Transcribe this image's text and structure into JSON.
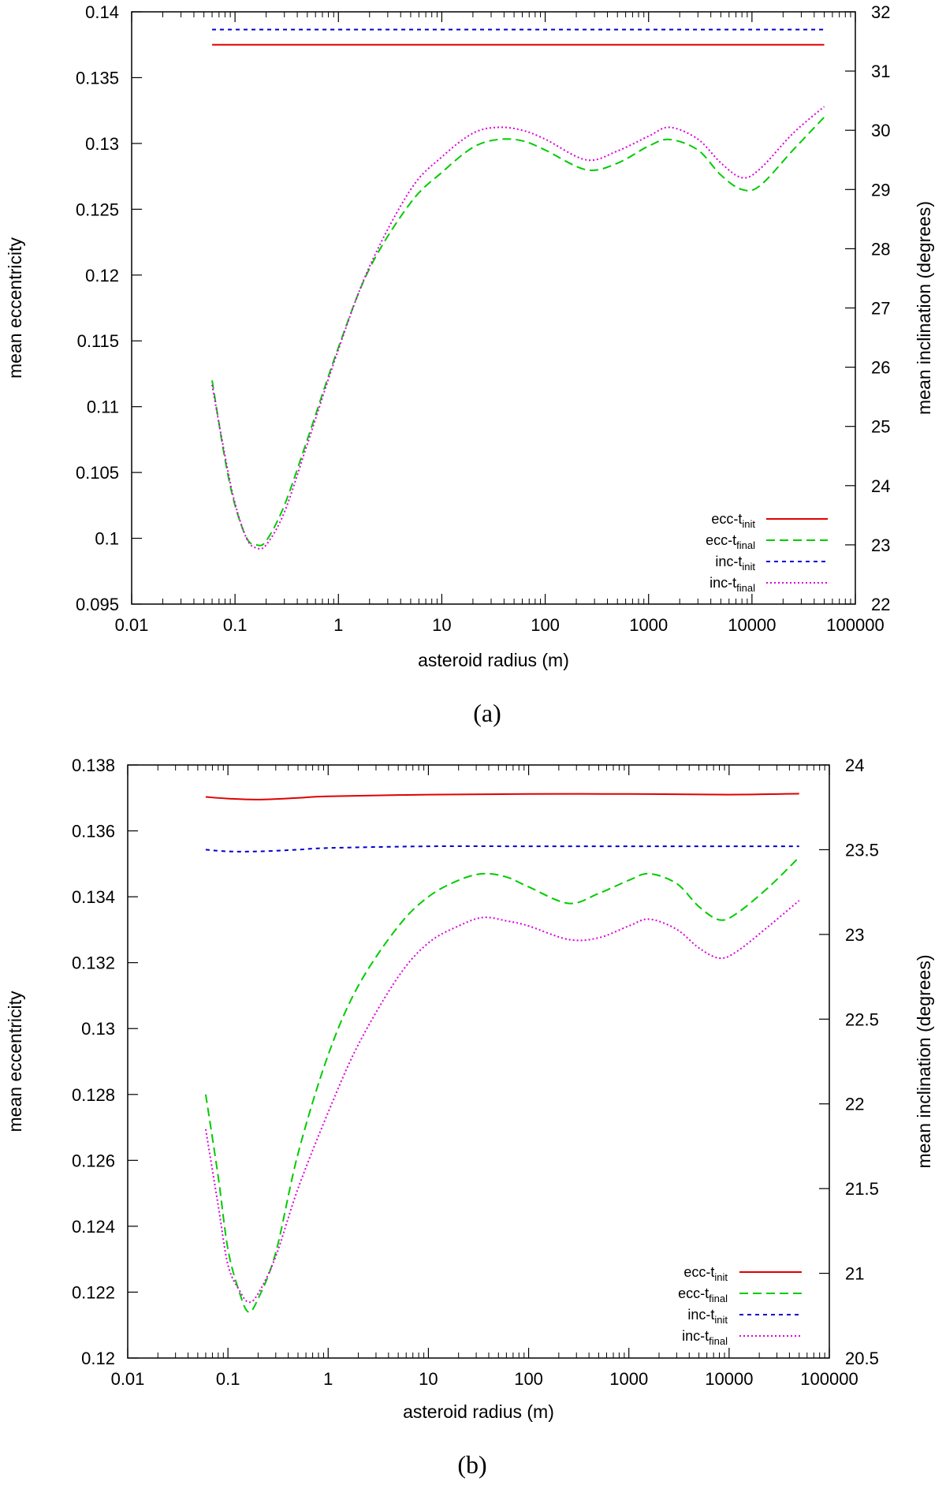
{
  "chart_data": [
    {
      "type": "line",
      "panel_label": "(a)",
      "xlabel": "asteroid radius (m)",
      "ylabel": "mean eccentricity",
      "y2label": "mean inclination (degrees)",
      "xscale": "log",
      "xlim": [
        0.01,
        100000
      ],
      "ylim": [
        0.095,
        0.14
      ],
      "y2lim": [
        22,
        32
      ],
      "xticks": [
        0.01,
        0.1,
        1,
        10,
        100,
        1000,
        10000,
        100000
      ],
      "xtick_labels": [
        "0.01",
        "0.1",
        "1",
        "10",
        "100",
        "1000",
        "10000",
        "100000"
      ],
      "yticks": [
        0.095,
        0.1,
        0.105,
        0.11,
        0.115,
        0.12,
        0.125,
        0.13,
        0.135,
        0.14
      ],
      "ytick_labels": [
        "0.095",
        "0.1",
        "0.105",
        "0.11",
        "0.115",
        "0.12",
        "0.125",
        "0.13",
        "0.135",
        "0.14"
      ],
      "y2ticks": [
        22,
        23,
        24,
        25,
        26,
        27,
        28,
        29,
        30,
        31,
        32
      ],
      "y2tick_labels": [
        "22",
        "23",
        "24",
        "25",
        "26",
        "27",
        "28",
        "29",
        "30",
        "31",
        "32"
      ],
      "legend_position": "bottom-right",
      "grid": false,
      "series": [
        {
          "name": "ecc-t",
          "sub": "init",
          "axis": "y",
          "color": "#e00000",
          "dash": "solid",
          "x": [
            0.06,
            1,
            10,
            100,
            1000,
            10000,
            50000
          ],
          "y": [
            0.1375,
            0.1375,
            0.1375,
            0.1375,
            0.1375,
            0.1375,
            0.1375
          ]
        },
        {
          "name": "ecc-t",
          "sub": "final",
          "axis": "y",
          "color": "#00cc00",
          "dash": "dashed",
          "x": [
            0.06,
            0.08,
            0.1,
            0.13,
            0.16,
            0.2,
            0.3,
            0.5,
            1,
            2,
            5,
            10,
            20,
            35,
            60,
            100,
            250,
            500,
            1000,
            1600,
            3000,
            5000,
            8000,
            12000,
            25000,
            50000
          ],
          "y": [
            0.112,
            0.106,
            0.1025,
            0.1,
            0.0995,
            0.0998,
            0.1025,
            0.1075,
            0.1145,
            0.1205,
            0.1255,
            0.1278,
            0.1297,
            0.1303,
            0.1302,
            0.1295,
            0.128,
            0.1285,
            0.1298,
            0.1303,
            0.1295,
            0.1276,
            0.1265,
            0.1268,
            0.1295,
            0.132
          ]
        },
        {
          "name": "inc-t",
          "sub": "init",
          "axis": "y2",
          "color": "#0000cc",
          "dash": "short-dash",
          "x": [
            0.06,
            1,
            10,
            100,
            1000,
            10000,
            50000
          ],
          "y": [
            31.7,
            31.7,
            31.7,
            31.7,
            31.7,
            31.7,
            31.7
          ]
        },
        {
          "name": "inc-t",
          "sub": "final",
          "axis": "y2",
          "color": "#dd00dd",
          "dash": "dotted",
          "x": [
            0.06,
            0.08,
            0.1,
            0.13,
            0.16,
            0.2,
            0.3,
            0.5,
            1,
            2,
            5,
            10,
            20,
            35,
            60,
            100,
            250,
            500,
            1000,
            1600,
            3000,
            5000,
            8000,
            12000,
            25000,
            50000
          ],
          "y": [
            25.7,
            24.5,
            23.7,
            23.1,
            22.95,
            23.0,
            23.55,
            24.7,
            26.3,
            27.7,
            29.0,
            29.55,
            29.95,
            30.05,
            30.0,
            29.85,
            29.5,
            29.65,
            29.9,
            30.05,
            29.85,
            29.45,
            29.2,
            29.35,
            29.95,
            30.4
          ]
        }
      ]
    },
    {
      "type": "line",
      "panel_label": "(b)",
      "xlabel": "asteroid radius (m)",
      "ylabel": "mean eccentricity",
      "y2label": "mean inclination (degrees)",
      "xscale": "log",
      "xlim": [
        0.01,
        100000
      ],
      "ylim": [
        0.12,
        0.138
      ],
      "y2lim": [
        20.5,
        24
      ],
      "xticks": [
        0.01,
        0.1,
        1,
        10,
        100,
        1000,
        10000,
        100000
      ],
      "xtick_labels": [
        "0.01",
        "0.1",
        "1",
        "10",
        "100",
        "1000",
        "10000",
        "100000"
      ],
      "yticks": [
        0.12,
        0.122,
        0.124,
        0.126,
        0.128,
        0.13,
        0.132,
        0.134,
        0.136,
        0.138
      ],
      "ytick_labels": [
        "0.12",
        "0.122",
        "0.124",
        "0.126",
        "0.128",
        "0.13",
        "0.132",
        "0.134",
        "0.136",
        "0.138"
      ],
      "y2ticks": [
        20.5,
        21,
        21.5,
        22,
        22.5,
        23,
        23.5,
        24
      ],
      "y2tick_labels": [
        "20.5",
        "21",
        "21.5",
        "22",
        "22.5",
        "23",
        "23.5",
        "24"
      ],
      "legend_position": "bottom-right",
      "grid": false,
      "series": [
        {
          "name": "ecc-t",
          "sub": "init",
          "axis": "y",
          "color": "#e00000",
          "dash": "solid",
          "x": [
            0.06,
            0.1,
            0.2,
            0.5,
            1,
            10,
            100,
            1000,
            10000,
            50000
          ],
          "y": [
            0.13703,
            0.13698,
            0.13695,
            0.137,
            0.13705,
            0.1371,
            0.13712,
            0.13712,
            0.1371,
            0.13713
          ]
        },
        {
          "name": "ecc-t",
          "sub": "final",
          "axis": "y",
          "color": "#00cc00",
          "dash": "dashed",
          "x": [
            0.06,
            0.08,
            0.1,
            0.13,
            0.16,
            0.2,
            0.3,
            0.5,
            1,
            2,
            5,
            10,
            20,
            35,
            60,
            100,
            250,
            500,
            1000,
            1600,
            3000,
            5000,
            8000,
            12000,
            25000,
            50000
          ],
          "y": [
            0.128,
            0.1255,
            0.1233,
            0.122,
            0.1214,
            0.1218,
            0.1232,
            0.1262,
            0.1292,
            0.1313,
            0.1331,
            0.134,
            0.1345,
            0.1347,
            0.1346,
            0.1343,
            0.1338,
            0.1341,
            0.1345,
            0.1347,
            0.1344,
            0.1337,
            0.1333,
            0.1335,
            0.1343,
            0.1352
          ]
        },
        {
          "name": "inc-t",
          "sub": "init",
          "axis": "y2",
          "color": "#0000cc",
          "dash": "short-dash",
          "x": [
            0.06,
            0.1,
            0.2,
            0.5,
            1,
            10,
            100,
            1000,
            10000,
            50000
          ],
          "y": [
            23.5,
            23.49,
            23.49,
            23.5,
            23.51,
            23.52,
            23.52,
            23.52,
            23.52,
            23.52
          ]
        },
        {
          "name": "inc-t",
          "sub": "final",
          "axis": "y2",
          "color": "#dd00dd",
          "dash": "dotted",
          "x": [
            0.06,
            0.08,
            0.1,
            0.13,
            0.16,
            0.2,
            0.3,
            0.5,
            1,
            2,
            5,
            10,
            20,
            35,
            60,
            100,
            250,
            500,
            1000,
            1600,
            3000,
            5000,
            8000,
            12000,
            25000,
            50000
          ],
          "y": [
            21.85,
            21.4,
            21.05,
            20.9,
            20.83,
            20.88,
            21.1,
            21.5,
            21.95,
            22.35,
            22.75,
            22.95,
            23.05,
            23.1,
            23.08,
            23.05,
            22.97,
            22.98,
            23.05,
            23.09,
            23.03,
            22.92,
            22.86,
            22.9,
            23.05,
            23.2
          ]
        }
      ]
    }
  ]
}
